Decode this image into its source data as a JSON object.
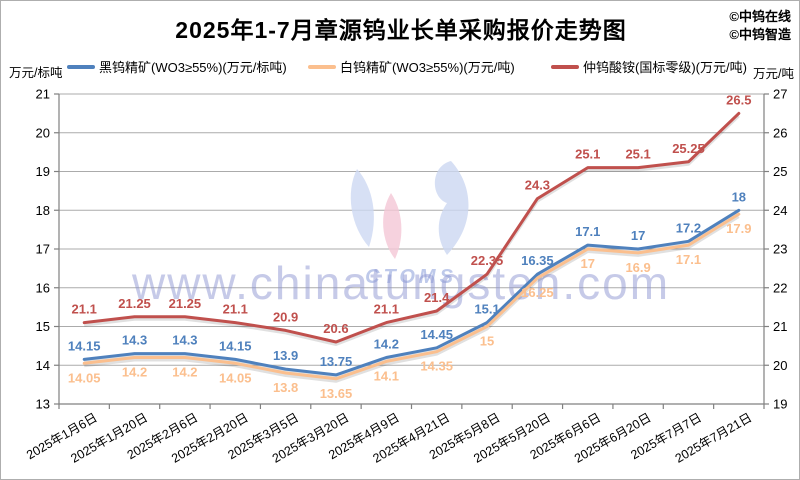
{
  "header": {
    "title": "2025年1-7月章源钨业长单采购报价走势图",
    "attribution": [
      "©中钨在线",
      "©中钨智造"
    ]
  },
  "axes": {
    "left_unit": "万元/标吨",
    "right_unit": "万元/吨"
  },
  "watermark": {
    "text": "www.chinatungsten.com",
    "logo_text": "CTOMS"
  },
  "chart_data": {
    "type": "line",
    "title": "2025年1-7月章源钨业长单采购报价走势图",
    "categories": [
      "2025年1月6日",
      "2025年1月20日",
      "2025年2月6日",
      "2025年2月20日",
      "2025年3月5日",
      "2025年3月20日",
      "2025年4月9日",
      "2025年4月21日",
      "2025年5月8日",
      "2025年5月20日",
      "2025年6月6日",
      "2025年6月20日",
      "2025年7月7日",
      "2025年7月21日"
    ],
    "series": [
      {
        "name": "黑钨精矿(WO3≥55%)(万元/标吨)",
        "axis": "left",
        "color": "#4F81BD",
        "label_position": "above",
        "values": [
          14.15,
          14.3,
          14.3,
          14.15,
          13.9,
          13.75,
          14.2,
          14.45,
          15.1,
          16.35,
          17.1,
          17,
          17.2,
          18
        ]
      },
      {
        "name": "白钨精矿(WO3≥55%)(万元/吨)",
        "axis": "left",
        "color": "#FBBF8E",
        "label_position": "below",
        "values": [
          14.05,
          14.2,
          14.2,
          14.05,
          13.8,
          13.65,
          14.1,
          14.35,
          15,
          16.25,
          17,
          16.9,
          17.1,
          17.9
        ]
      },
      {
        "name": "仲钨酸铵(国标零级)(万元/吨)",
        "axis": "right",
        "color": "#C0504D",
        "label_position": "above",
        "values": [
          21.1,
          21.25,
          21.25,
          21.1,
          20.9,
          20.6,
          21.1,
          21.4,
          22.35,
          24.3,
          25.1,
          25.1,
          25.25,
          26.5
        ]
      }
    ],
    "left_axis": {
      "min": 13,
      "max": 21,
      "step": 1,
      "unit": "万元/标吨"
    },
    "right_axis": {
      "min": 19,
      "max": 27,
      "step": 1,
      "unit": "万元/吨"
    },
    "grid": true,
    "legend_position": "top",
    "grid_color": "#ABABAB",
    "axis_color": "#808080",
    "watermark_color": "#8F96D2"
  }
}
